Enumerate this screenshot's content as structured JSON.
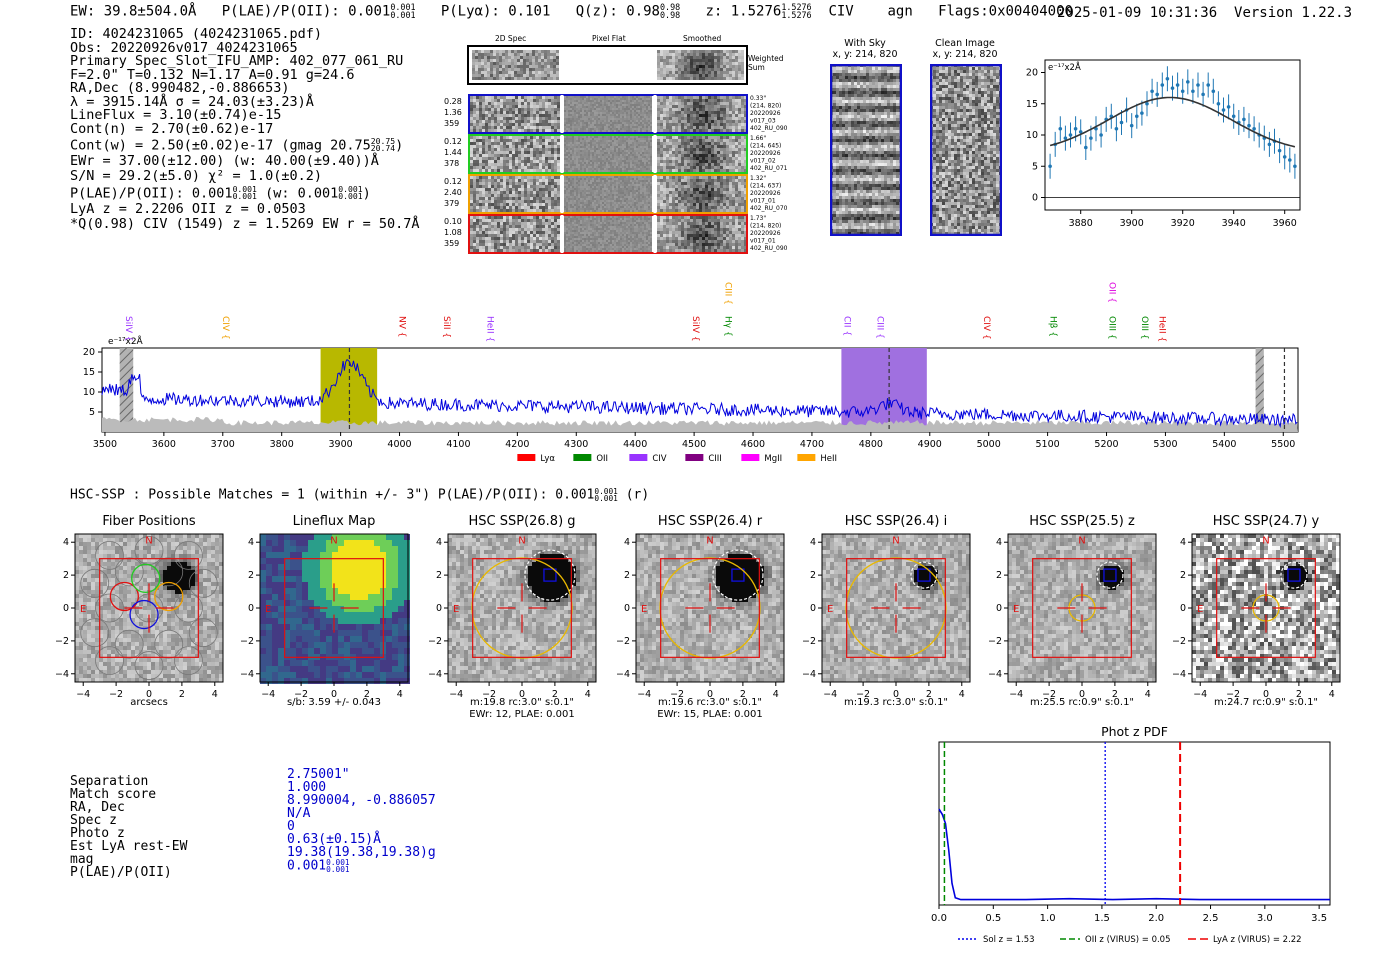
{
  "header": {
    "ew": "EW: 39.8±504.0Å",
    "plae": "P(LAE)/P(OII): 0.001",
    "plae_frac": [
      "0.001",
      "0.001"
    ],
    "plya": "P(Lyα): 0.101",
    "qz": "Q(z): 0.98",
    "qz_frac": [
      "0.98",
      "0.98"
    ],
    "z": "z: 1.5276",
    "z_frac": [
      "1.5276",
      "1.5276"
    ],
    "line": "CIV",
    "agn": "agn",
    "flags": "Flags:0x00404000",
    "timestamp": "2025-01-09 10:31:36",
    "version": "Version 1.22.3"
  },
  "info": {
    "l1": "ID: 4024231065 (4024231065.pdf)",
    "l2": "Obs: 20220926v017_4024231065",
    "l3": "Primary Spec_Slot_IFU_AMP: 402_077_061_RU",
    "l4": "F=2.0\"  T=0.132  N=1.17  A=0.91  g=24.6",
    "l5": "RA,Dec (8.990482,-0.886653)",
    "l6": "λ = 3915.14Å  σ = 24.03(±3.23)Å",
    "l7": "LineFlux = 3.10(±0.74)e-15",
    "l8": "Cont(n) = 2.70(±0.62)e-17",
    "l9": "Cont(w) = 2.50(±0.02)e-17 (gmag 20.75",
    "l9_frac": [
      "20.75",
      "20.74"
    ],
    "l10": "EWr = 37.00(±12.00) (w: 40.00(±9.40))Å",
    "l11": "S/N = 29.2(±5.0)  χ² = 1.0(±0.2)",
    "l12a": "P(LAE)/P(OII): 0.001",
    "l12_frac1": [
      "0.001",
      "0.001"
    ],
    "l12b": "(w: 0.001",
    "l12_frac2": [
      "0.001",
      "0.001"
    ],
    "l13": "LyA z = 2.2206  OII z = 0.0503",
    "l14": "*Q(0.98) CIV (1549) z = 1.5269  EW r = 50.7Å"
  },
  "cutouts": {
    "col_labels": [
      "2D Spec",
      "Pixel Flat",
      "Smoothed"
    ],
    "weighted_label": "Weighted Sum",
    "rows": [
      {
        "left": [
          "0.28",
          "1.36",
          "359"
        ],
        "right": [
          "0.33\"",
          "(214, 820)",
          "20220926",
          "v017_03",
          "402_RU_090"
        ],
        "color": "#1010c8"
      },
      {
        "left": [
          "0.12",
          "1.44",
          "378"
        ],
        "right": [
          "1.66\"",
          "(214, 645)",
          "20220926",
          "v017_02",
          "402_RU_071"
        ],
        "color": "#22cc22"
      },
      {
        "left": [
          "0.12",
          "2.40",
          "379"
        ],
        "right": [
          "1.32\"",
          "(214, 637)",
          "20220926",
          "v017_01",
          "402_RU_070"
        ],
        "color": "#f0a000"
      },
      {
        "left": [
          "0.10",
          "1.08",
          "359"
        ],
        "right": [
          "1.73\"",
          "(214, 820)",
          "20220926",
          "v017_01",
          "402_RU_090"
        ],
        "color": "#e01010"
      }
    ],
    "with_sky_title": "With Sky",
    "with_sky_coords": "x, y: 214, 820",
    "clean_title": "Clean Image",
    "clean_coords": "x, y: 214, 820"
  },
  "fit_chart": {
    "type": "scatter",
    "ylabel_note": "e⁻¹⁷x2Å",
    "xlim": [
      3866,
      3966
    ],
    "ylim": [
      -2,
      22
    ],
    "xticks": [
      3880,
      3900,
      3920,
      3940,
      3960
    ],
    "yticks": [
      0,
      5,
      10,
      15,
      20
    ],
    "x": [
      3868,
      3870,
      3872,
      3874,
      3876,
      3878,
      3880,
      3882,
      3884,
      3886,
      3888,
      3890,
      3892,
      3894,
      3896,
      3898,
      3900,
      3902,
      3904,
      3906,
      3908,
      3910,
      3912,
      3914,
      3916,
      3918,
      3920,
      3922,
      3924,
      3926,
      3928,
      3930,
      3932,
      3934,
      3936,
      3938,
      3940,
      3942,
      3944,
      3946,
      3948,
      3950,
      3952,
      3954,
      3956,
      3958,
      3960,
      3962,
      3964
    ],
    "y": [
      5,
      8.5,
      11,
      9.5,
      10,
      11,
      10.5,
      8,
      9.5,
      11,
      10,
      12.5,
      13,
      11,
      12,
      14,
      11.5,
      13,
      13.5,
      15,
      17,
      16.5,
      18,
      19,
      17.5,
      18,
      17,
      18.5,
      17,
      18,
      16.5,
      18,
      17,
      15,
      14,
      14.5,
      13,
      12,
      12.5,
      11.5,
      11,
      10,
      9.5,
      8.5,
      9,
      7.5,
      6.5,
      6,
      5
    ],
    "fit": {
      "amplitude": 9,
      "center": 3915,
      "sigma": 24,
      "continuum": 7.0
    }
  },
  "spectrum": {
    "type": "line",
    "xlim": [
      3495,
      5525
    ],
    "ylim": [
      0,
      21
    ],
    "xticks": [
      3500,
      3600,
      3700,
      3800,
      3900,
      4000,
      4100,
      4200,
      4300,
      4400,
      4500,
      4600,
      4700,
      4800,
      4900,
      5000,
      5100,
      5200,
      5300,
      5400,
      5500
    ],
    "yticks": [
      5,
      10,
      15,
      20
    ],
    "ylabel_note": "e⁻¹⁷x2Å",
    "line_labels": [
      {
        "text": "SiIV",
        "x": 3531,
        "row": 1,
        "color": "#9933ff"
      },
      {
        "text": "CIV",
        "x": 3695,
        "row": 1,
        "color": "#f0a000"
      },
      {
        "text": "NV",
        "x": 3995,
        "row": 1,
        "color": "#e01010"
      },
      {
        "text": "SiII",
        "x": 4070,
        "row": 1,
        "color": "#e01010"
      },
      {
        "text": "HeII",
        "x": 4144,
        "row": 1,
        "color": "#9933ff"
      },
      {
        "text": "SiIV",
        "x": 4493,
        "row": 1,
        "color": "#e01010"
      },
      {
        "text": "CIII",
        "x": 4548,
        "row": 0,
        "color": "#f0a000"
      },
      {
        "text": "Hγ",
        "x": 4548,
        "row": 1,
        "color": "#008800"
      },
      {
        "text": "CII",
        "x": 4750,
        "row": 1,
        "color": "#9933ff"
      },
      {
        "text": "CIII",
        "x": 4806,
        "row": 1,
        "color": "#9933ff"
      },
      {
        "text": "CIV",
        "x": 4987,
        "row": 1,
        "color": "#e01010"
      },
      {
        "text": "Hβ",
        "x": 5100,
        "row": 1,
        "color": "#008800"
      },
      {
        "text": "OII",
        "x": 5200,
        "row": 0,
        "color": "#dd00dd"
      },
      {
        "text": "OIII",
        "x": 5200,
        "row": 1,
        "color": "#008800"
      },
      {
        "text": "OIII",
        "x": 5255,
        "row": 1,
        "color": "#008800"
      },
      {
        "text": "HeII",
        "x": 5285,
        "row": 1,
        "color": "#e01010"
      }
    ],
    "regions": [
      {
        "from": 3525,
        "to": 3548,
        "color": "#999999",
        "hatch": true
      },
      {
        "from": 3866,
        "to": 3962,
        "color": "#b8b800",
        "hatch": false
      },
      {
        "from": 4750,
        "to": 4895,
        "color": "#a070e0",
        "hatch": false
      },
      {
        "from": 5453,
        "to": 5467,
        "color": "#999999",
        "hatch": true
      }
    ],
    "dashed_lines": [
      3915,
      4831,
      5502
    ],
    "legend": [
      {
        "label": "Lyα",
        "color": "#ff0000"
      },
      {
        "label": "OII",
        "color": "#008800"
      },
      {
        "label": "CIV",
        "color": "#9933ff"
      },
      {
        "label": "CIII",
        "color": "#800080"
      },
      {
        "label": "MgII",
        "color": "#ff00ff"
      },
      {
        "label": "HeII",
        "color": "#ffa500"
      }
    ]
  },
  "hsc": {
    "summary": "HSC-SSP : Possible Matches = 1 (within +/- 3\")  P(LAE)/P(OII): 0.001",
    "summary_frac": [
      "0.001",
      "0.001"
    ],
    "summary_end": "(r)",
    "ticks": [
      -4,
      -2,
      0,
      2,
      4
    ],
    "panels": [
      {
        "title": "Fiber Positions",
        "cap1": "arcsecs",
        "cap2": ""
      },
      {
        "title": "Lineflux Map",
        "cap1": "s/b: 3.59 +/- 0.043",
        "cap2": ""
      },
      {
        "title": "HSC SSP(26.8) g",
        "cap1": "m:19.8 rc:3.0\"  s:0.1\"",
        "cap2": "EWr: 12, PLAE: 0.001"
      },
      {
        "title": "HSC SSP(26.4) r",
        "cap1": "m:19.6 rc:3.0\"  s:0.1\"",
        "cap2": "EWr: 15, PLAE: 0.001"
      },
      {
        "title": "HSC SSP(26.4) i",
        "cap1": "m:19.3 rc:3.0\"  s:0.1\"",
        "cap2": ""
      },
      {
        "title": "HSC SSP(25.5) z",
        "cap1": "m:25.5 rc:0.9\"  s:0.1\"",
        "cap2": ""
      },
      {
        "title": "HSC SSP(24.7) y",
        "cap1": "m:24.7 rc:0.9\"  s:0.1\"",
        "cap2": ""
      }
    ],
    "n_label": "N",
    "e_label": "E"
  },
  "match": {
    "labels": [
      "Separation",
      "Match score",
      "RA, Dec",
      "Spec z",
      "Photo z",
      "Est LyA rest-EW",
      "mag",
      "P(LAE)/P(OII)"
    ],
    "values": [
      "2.75001\"",
      "1.000",
      "8.990004, -0.886057",
      "N/A",
      "0",
      "0.63(±0.15)Å",
      "19.38(19.38,19.38)g",
      "0.001"
    ],
    "plae_frac": [
      "0.001",
      "0.001"
    ]
  },
  "photz": {
    "type": "line",
    "title": "Phot z PDF",
    "xlim": [
      0,
      3.6
    ],
    "xticks": [
      0.0,
      0.5,
      1.0,
      1.5,
      2.0,
      2.5,
      3.0,
      3.5
    ],
    "x": [
      0,
      0.03,
      0.06,
      0.09,
      0.12,
      0.15,
      0.2,
      0.4,
      0.8,
      1.2,
      1.6,
      2.0,
      2.4,
      2.8,
      3.2,
      3.6
    ],
    "y": [
      0.53,
      0.5,
      0.45,
      0.3,
      0.12,
      0.04,
      0.03,
      0.03,
      0.03,
      0.035,
      0.03,
      0.035,
      0.03,
      0.03,
      0.03,
      0.03
    ],
    "sol_z": 1.53,
    "oii_z": 0.05,
    "lya_z": 2.22,
    "legend": [
      {
        "label": "Sol z = 1.53",
        "color": "#0000ee",
        "dash": "2,2"
      },
      {
        "label": "OII z (VIRUS) = 0.05",
        "color": "#008800",
        "dash": "6,3"
      },
      {
        "label": "LyA z (VIRUS) = 2.22",
        "color": "#ee0000",
        "dash": "8,4"
      }
    ]
  },
  "colors": {
    "blue": "#0000cc",
    "fitline": "#333333",
    "points": "#1f77b4"
  }
}
